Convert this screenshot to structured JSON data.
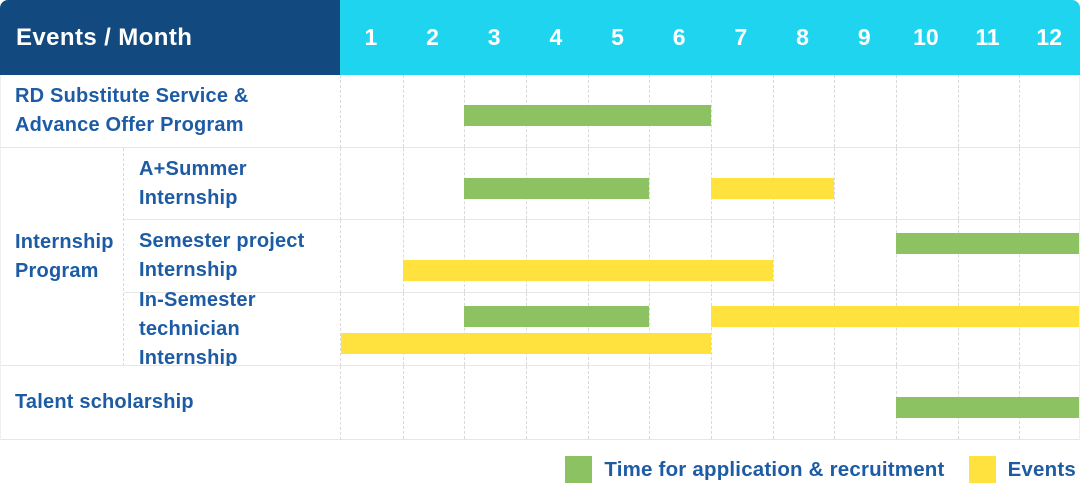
{
  "table": {
    "corner_header": "Events / Month",
    "months": [
      "1",
      "2",
      "3",
      "4",
      "5",
      "6",
      "7",
      "8",
      "9",
      "10",
      "11",
      "12"
    ]
  },
  "series": {
    "recruitment": {
      "label": "Time for application & recruitment",
      "color": "#8CC262"
    },
    "events": {
      "label": "Events",
      "color": "#FFE23D"
    }
  },
  "group": {
    "id": "internship-program",
    "label": "Internship Program",
    "label_lines": [
      "Internship",
      "Program"
    ]
  },
  "rows": [
    {
      "id": "rd-substitute-service",
      "label": "RD Substitute Service & Advance Offer Program",
      "label_lines": [
        "RD Substitute Service &",
        "Advance Offer Program"
      ],
      "group_member": false,
      "lanes": [
        [
          {
            "series": "recruitment",
            "start": 3,
            "end": 6
          }
        ]
      ]
    },
    {
      "id": "a-plus-summer-internship",
      "label": "A+Summer Internship",
      "label_lines": [
        "A+Summer",
        "Internship"
      ],
      "group_member": true,
      "lanes": [
        [
          {
            "series": "recruitment",
            "start": 3,
            "end": 5
          },
          {
            "series": "events",
            "start": 7,
            "end": 8
          }
        ]
      ]
    },
    {
      "id": "semester-project-internship",
      "label": "Semester project Internship",
      "label_lines": [
        "Semester project",
        "Internship"
      ],
      "group_member": true,
      "lanes": [
        [
          {
            "series": "recruitment",
            "start": 10,
            "end": 12
          }
        ],
        [
          {
            "series": "events",
            "start": 2,
            "end": 7
          }
        ]
      ]
    },
    {
      "id": "in-semester-technician-internship",
      "label": "In-Semester technician Internship",
      "label_lines": [
        "In-Semester",
        "technician Internship"
      ],
      "group_member": true,
      "lanes": [
        [
          {
            "series": "recruitment",
            "start": 3,
            "end": 5
          },
          {
            "series": "events",
            "start": 7,
            "end": 12
          }
        ],
        [
          {
            "series": "events",
            "start": 1,
            "end": 6
          }
        ]
      ]
    },
    {
      "id": "talent-scholarship",
      "label": "Talent scholarship",
      "label_lines": [
        "Talent scholarship"
      ],
      "group_member": false,
      "lanes": [
        [
          {
            "series": "recruitment",
            "start": 10,
            "end": 12
          }
        ]
      ]
    }
  ],
  "legend": [
    {
      "series": "recruitment",
      "label": "Time for application & recruitment"
    },
    {
      "series": "events",
      "label": "Events"
    }
  ],
  "colors": {
    "header_navy": "#12497E",
    "header_cyan": "#1FD4EF",
    "label_text": "#1D5CA4",
    "grid_horizontal": "#E6E6E6",
    "grid_vertical": "#D9D9D9",
    "bar_green": "#8CC262",
    "bar_yellow": "#FFE23D"
  },
  "chart_data": {
    "type": "gantt",
    "title": "Events / Month",
    "x_axis": {
      "label": "Month",
      "ticks": [
        1,
        2,
        3,
        4,
        5,
        6,
        7,
        8,
        9,
        10,
        11,
        12
      ],
      "range": [
        1,
        12
      ]
    },
    "legend_entries": [
      "Time for application & recruitment",
      "Events"
    ],
    "legend_position": "bottom-right",
    "grid": true,
    "tasks": [
      {
        "name": "RD Substitute Service & Advance Offer Program",
        "group": null,
        "bars": [
          {
            "series": "Time for application & recruitment",
            "start_month": 3,
            "end_month": 6
          }
        ]
      },
      {
        "name": "A+Summer Internship",
        "group": "Internship Program",
        "bars": [
          {
            "series": "Time for application & recruitment",
            "start_month": 3,
            "end_month": 5
          },
          {
            "series": "Events",
            "start_month": 7,
            "end_month": 8
          }
        ]
      },
      {
        "name": "Semester project Internship",
        "group": "Internship Program",
        "bars": [
          {
            "series": "Time for application & recruitment",
            "start_month": 10,
            "end_month": 12
          },
          {
            "series": "Events",
            "start_month": 2,
            "end_month": 7
          }
        ]
      },
      {
        "name": "In-Semester technician Internship",
        "group": "Internship Program",
        "bars": [
          {
            "series": "Time for application & recruitment",
            "start_month": 3,
            "end_month": 5
          },
          {
            "series": "Events",
            "start_month": 7,
            "end_month": 12
          },
          {
            "series": "Events",
            "start_month": 1,
            "end_month": 6
          }
        ]
      },
      {
        "name": "Talent scholarship",
        "group": null,
        "bars": [
          {
            "series": "Time for application & recruitment",
            "start_month": 10,
            "end_month": 12
          }
        ]
      }
    ]
  }
}
